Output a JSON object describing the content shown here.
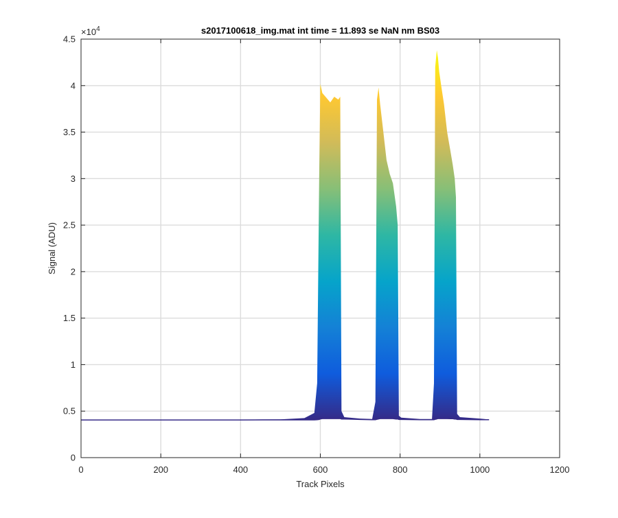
{
  "chart_data": {
    "type": "area",
    "title": "s2017100618_img.mat int time = 11.893 se  NaN nm BS03",
    "xlabel": "Track Pixels",
    "ylabel": "Signal (ADU)",
    "xlim": [
      0,
      1200
    ],
    "ylim": [
      0,
      45000
    ],
    "y_exponent_label": "×10",
    "y_exponent_power": "4",
    "grid": true,
    "x_ticks": [
      0,
      200,
      400,
      600,
      800,
      1000,
      1200
    ],
    "x_tick_labels": [
      "0",
      "200",
      "400",
      "600",
      "800",
      "1000",
      "1200"
    ],
    "y_ticks": [
      0,
      5000,
      10000,
      15000,
      20000,
      25000,
      30000,
      35000,
      40000,
      45000
    ],
    "y_tick_labels": [
      "0",
      "0.5",
      "1",
      "1.5",
      "2",
      "2.5",
      "3",
      "3.5",
      "4",
      "4.5"
    ],
    "baseline": 4050,
    "x_range": [
      0,
      1023
    ],
    "colormap": [
      "#352a87",
      "#0f5cdd",
      "#1481d6",
      "#06a4ca",
      "#2eb7a4",
      "#87bf77",
      "#d1bb59",
      "#fec832",
      "#f9fb0e"
    ],
    "series": [
      {
        "x": [
          0,
          200,
          400,
          500,
          560,
          585,
          592,
          597,
          600,
          605,
          615,
          625,
          635,
          645,
          650,
          653,
          660,
          700,
          730,
          738,
          742,
          746,
          750,
          758,
          766,
          774,
          782,
          790,
          794,
          797,
          803,
          850,
          880,
          885,
          888,
          892,
          895,
          898,
          903,
          910,
          918,
          926,
          932,
          937,
          940,
          943,
          950,
          1000,
          1023
        ],
        "upper": [
          4050,
          4050,
          4080,
          4120,
          4250,
          4800,
          8000,
          30000,
          40200,
          39200,
          38700,
          38200,
          38800,
          38500,
          38800,
          5000,
          4350,
          4200,
          4150,
          6000,
          38500,
          39800,
          38000,
          35000,
          32000,
          30500,
          29500,
          27000,
          25000,
          4500,
          4300,
          4150,
          4150,
          8000,
          42000,
          43800,
          43000,
          41500,
          40000,
          38000,
          35000,
          33000,
          31500,
          30000,
          28000,
          4700,
          4350,
          4200,
          4100
        ],
        "lower": [
          4050,
          4050,
          4050,
          4060,
          4060,
          4060,
          4080,
          4100,
          4150,
          4200,
          4200,
          4200,
          4200,
          4200,
          4200,
          4150,
          4150,
          4100,
          4080,
          4080,
          4120,
          4150,
          4200,
          4200,
          4200,
          4200,
          4200,
          4150,
          4150,
          4100,
          4100,
          4080,
          4080,
          4080,
          4120,
          4150,
          4200,
          4200,
          4200,
          4200,
          4200,
          4180,
          4180,
          4150,
          4150,
          4100,
          4100,
          4080,
          4080
        ]
      }
    ]
  }
}
